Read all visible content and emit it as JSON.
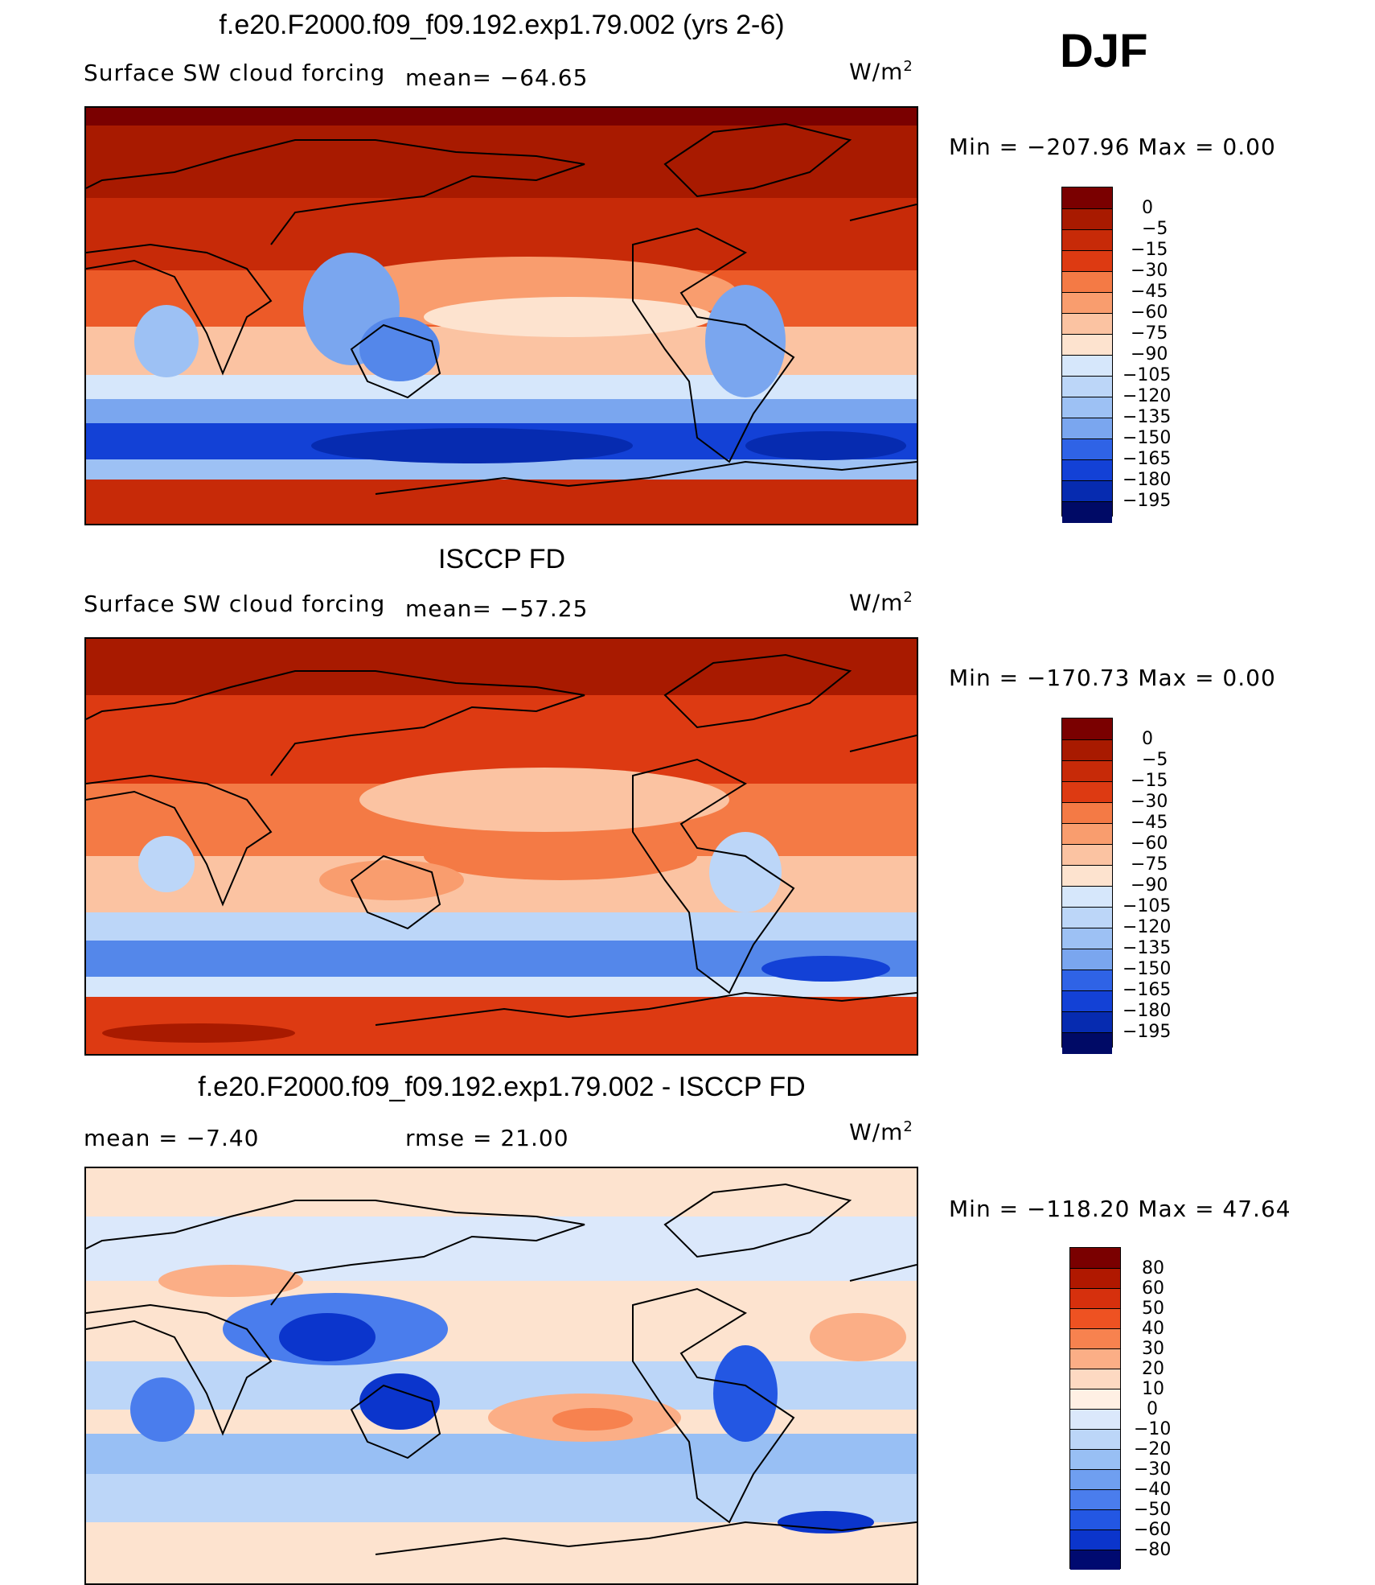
{
  "season": "DJF",
  "units_base": "W/m",
  "units_exp": "2",
  "palette": {
    "reds": [
      "#7a0000",
      "#a81a00",
      "#c72a08",
      "#dd3a12",
      "#ec5a28",
      "#f47a45",
      "#f99d6e",
      "#fbc3a2",
      "#fde3cf"
    ],
    "blues": [
      "#d6e7fb",
      "#bcd6f8",
      "#9dc1f4",
      "#7aa6ef",
      "#5487ea",
      "#2f63e6",
      "#1341d6",
      "#062bb0",
      "#001a8a",
      "#000a66"
    ],
    "diff": [
      "#7a0000",
      "#b01800",
      "#d6300d",
      "#ee5222",
      "#f7824f",
      "#fbae86",
      "#fdd9c2",
      "#fff0e4",
      "#dbe8fb",
      "#bcd6f8",
      "#98bff4",
      "#6f9ff0",
      "#4a7ded",
      "#2357e3",
      "#0b35cc",
      "#0020a3",
      "#000a70"
    ]
  },
  "panels": [
    {
      "title": "f.e20.F2000.f09_f09.192.exp1.79.002 (yrs 2-6)",
      "variable": "Surface SW cloud forcing",
      "mean_label": "mean= −64.65",
      "minmax": "Min  =  −207.96  Max  =      0.00",
      "colorbar": [
        "0",
        "−5",
        "−15",
        "−30",
        "−45",
        "−60",
        "−75",
        "−90",
        "−105",
        "−120",
        "−135",
        "−150",
        "−165",
        "−180",
        "−195"
      ]
    },
    {
      "title": "ISCCP FD",
      "variable": "Surface SW cloud forcing",
      "mean_label": "mean= −57.25",
      "minmax": "Min  =  −170.73  Max  =      0.00",
      "colorbar": [
        "0",
        "−5",
        "−15",
        "−30",
        "−45",
        "−60",
        "−75",
        "−90",
        "−105",
        "−120",
        "−135",
        "−150",
        "−165",
        "−180",
        "−195"
      ]
    },
    {
      "title": "f.e20.F2000.f09_f09.192.exp1.79.002 - ISCCP FD",
      "mean_label": "mean  =    −7.40",
      "rmse_label": "rmse  =    21.00",
      "minmax": "Min  =  −118.20  Max  =    47.64",
      "colorbar": [
        "80",
        "60",
        "50",
        "40",
        "30",
        "20",
        "10",
        "0",
        "−10",
        "−20",
        "−30",
        "−40",
        "−50",
        "−60",
        "−80"
      ]
    }
  ],
  "chart_data": [
    {
      "type": "heatmap",
      "title": "f.e20.F2000.f09_f09.192.exp1.79.002 (yrs 2-6)",
      "subtitle": "Surface SW cloud forcing",
      "units": "W/m2",
      "mean": -64.65,
      "min": -207.96,
      "max": 0.0,
      "contour_levels": [
        0,
        -5,
        -15,
        -30,
        -45,
        -60,
        -75,
        -90,
        -105,
        -120,
        -135,
        -150,
        -165,
        -180,
        -195
      ],
      "approx_zonal_profile": [
        {
          "lat": 85,
          "value": -5
        },
        {
          "lat": 60,
          "value": -20
        },
        {
          "lat": 40,
          "value": -35
        },
        {
          "lat": 20,
          "value": -60
        },
        {
          "lat": 0,
          "value": -85
        },
        {
          "lat": -20,
          "value": -70
        },
        {
          "lat": -40,
          "value": -110
        },
        {
          "lat": -55,
          "value": -150
        },
        {
          "lat": -65,
          "value": -95
        },
        {
          "lat": -80,
          "value": -25
        }
      ]
    },
    {
      "type": "heatmap",
      "title": "ISCCP FD",
      "subtitle": "Surface SW cloud forcing",
      "units": "W/m2",
      "mean": -57.25,
      "min": -170.73,
      "max": 0.0,
      "contour_levels": [
        0,
        -5,
        -15,
        -30,
        -45,
        -60,
        -75,
        -90,
        -105,
        -120,
        -135,
        -150,
        -165,
        -180,
        -195
      ],
      "approx_zonal_profile": [
        {
          "lat": 85,
          "value": -10
        },
        {
          "lat": 60,
          "value": -25
        },
        {
          "lat": 40,
          "value": -40
        },
        {
          "lat": 20,
          "value": -55
        },
        {
          "lat": 0,
          "value": -75
        },
        {
          "lat": -20,
          "value": -65
        },
        {
          "lat": -40,
          "value": -100
        },
        {
          "lat": -55,
          "value": -130
        },
        {
          "lat": -65,
          "value": -80
        },
        {
          "lat": -80,
          "value": -30
        }
      ]
    },
    {
      "type": "heatmap",
      "title": "f.e20.F2000.f09_f09.192.exp1.79.002 - ISCCP FD",
      "units": "W/m2",
      "mean": -7.4,
      "rmse": 21.0,
      "min": -118.2,
      "max": 47.64,
      "contour_levels": [
        80,
        60,
        50,
        40,
        30,
        20,
        10,
        0,
        -10,
        -20,
        -30,
        -40,
        -50,
        -60,
        -80
      ],
      "approx_zonal_profile": [
        {
          "lat": 85,
          "value": 5
        },
        {
          "lat": 60,
          "value": -5
        },
        {
          "lat": 40,
          "value": -5
        },
        {
          "lat": 20,
          "value": -10
        },
        {
          "lat": 0,
          "value": -20
        },
        {
          "lat": -20,
          "value": -10
        },
        {
          "lat": -40,
          "value": -15
        },
        {
          "lat": -55,
          "value": -20
        },
        {
          "lat": -65,
          "value": -15
        },
        {
          "lat": -80,
          "value": 5
        }
      ]
    }
  ]
}
